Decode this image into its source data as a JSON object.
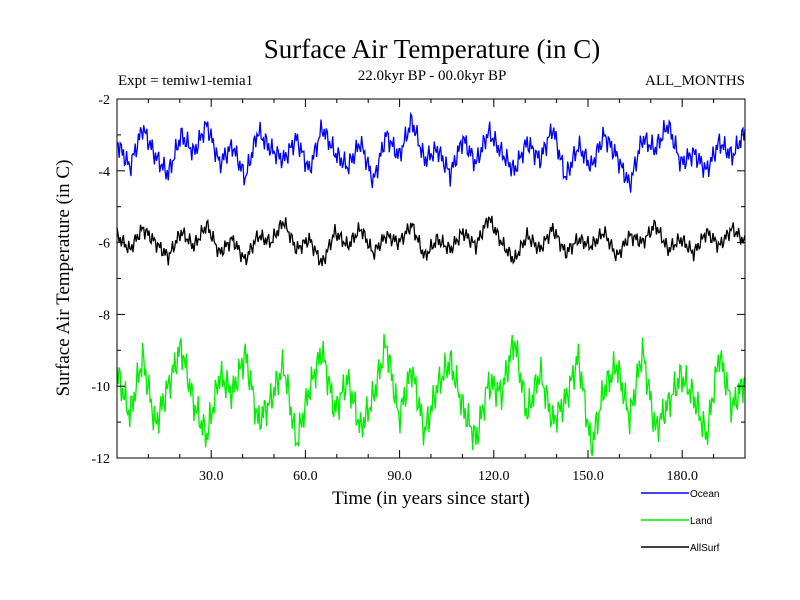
{
  "chart_data": {
    "type": "line",
    "title": "Surface Air Temperature (in C)",
    "subtitle": "22.0kyr BP - 00.0kyr BP",
    "annotation_left": "Expt = temiw1-temia1",
    "annotation_right": "ALL_MONTHS",
    "xlabel": "Time (in years since start)",
    "ylabel": "Surface Air Temperature (in C)",
    "xlim": [
      0,
      200
    ],
    "ylim": [
      -12,
      -2
    ],
    "x_ticks": [
      30,
      60,
      90,
      120,
      150,
      180
    ],
    "x_tick_labels": [
      "30.0",
      "60.0",
      "90.0",
      "120.0",
      "150.0",
      "180.0"
    ],
    "y_ticks": [
      -2,
      -4,
      -6,
      -8,
      -10,
      -12
    ],
    "y_tick_labels": [
      "-2",
      "-4",
      "-6",
      "-8",
      "-10",
      "-12"
    ],
    "grid": false,
    "legend_position": "bottom-right",
    "samples_per_year": 12,
    "series": [
      {
        "name": "Ocean",
        "color": "#0000ff",
        "values": [
          -3.2,
          -3.9,
          -2.8,
          -3.6,
          -4.1,
          -3.0,
          -3.5,
          -2.7,
          -3.8,
          -3.3,
          -4.2,
          -2.9,
          -3.4,
          -3.7,
          -3.1,
          -4.0,
          -2.8,
          -3.5,
          -3.9,
          -3.2,
          -4.3,
          -3.0,
          -3.6,
          -2.6,
          -3.7,
          -3.4,
          -4.1,
          -3.1,
          -3.8,
          -2.9,
          -3.5,
          -4.0,
          -3.2,
          -3.7,
          -2.8,
          -4.2,
          -3.3,
          -3.9,
          -3.0,
          -3.6,
          -4.4,
          -3.1,
          -3.4,
          -2.7,
          -3.8,
          -3.5,
          -4.0,
          -3.2,
          -3.6,
          -2.9
        ]
      },
      {
        "name": "Land",
        "color": "#00ee00",
        "values": [
          -9.6,
          -10.8,
          -9.2,
          -11.1,
          -10.0,
          -8.9,
          -10.5,
          -11.4,
          -9.7,
          -10.2,
          -9.1,
          -11.0,
          -10.4,
          -9.4,
          -11.6,
          -10.1,
          -9.0,
          -10.7,
          -9.8,
          -11.2,
          -10.3,
          -8.8,
          -10.9,
          -9.5,
          -11.3,
          -10.0,
          -9.3,
          -10.6,
          -11.5,
          -9.9,
          -10.2,
          -8.7,
          -10.8,
          -9.6,
          -11.0,
          -10.4,
          -9.2,
          -11.7,
          -10.1,
          -9.4,
          -10.9,
          -9.0,
          -11.2,
          -10.5,
          -9.7,
          -10.3,
          -11.4,
          -9.1,
          -10.6,
          -9.8
        ]
      },
      {
        "name": "AllSurf",
        "color": "#000000",
        "values": [
          -5.8,
          -6.2,
          -5.6,
          -6.0,
          -6.4,
          -5.7,
          -6.1,
          -5.5,
          -6.3,
          -5.9,
          -6.5,
          -5.8,
          -6.0,
          -5.4,
          -6.2,
          -5.9,
          -6.6,
          -5.7,
          -6.1,
          -5.6,
          -6.3,
          -5.8,
          -6.0,
          -5.5,
          -6.4,
          -5.9,
          -6.2,
          -5.7,
          -6.1,
          -5.3,
          -6.0,
          -6.5,
          -5.8,
          -6.2,
          -5.6,
          -6.3,
          -5.9,
          -6.1,
          -5.7,
          -6.4,
          -5.8,
          -6.0,
          -5.5,
          -6.2,
          -5.9,
          -6.3,
          -5.7,
          -6.1,
          -5.6,
          -6.0
        ]
      }
    ]
  }
}
